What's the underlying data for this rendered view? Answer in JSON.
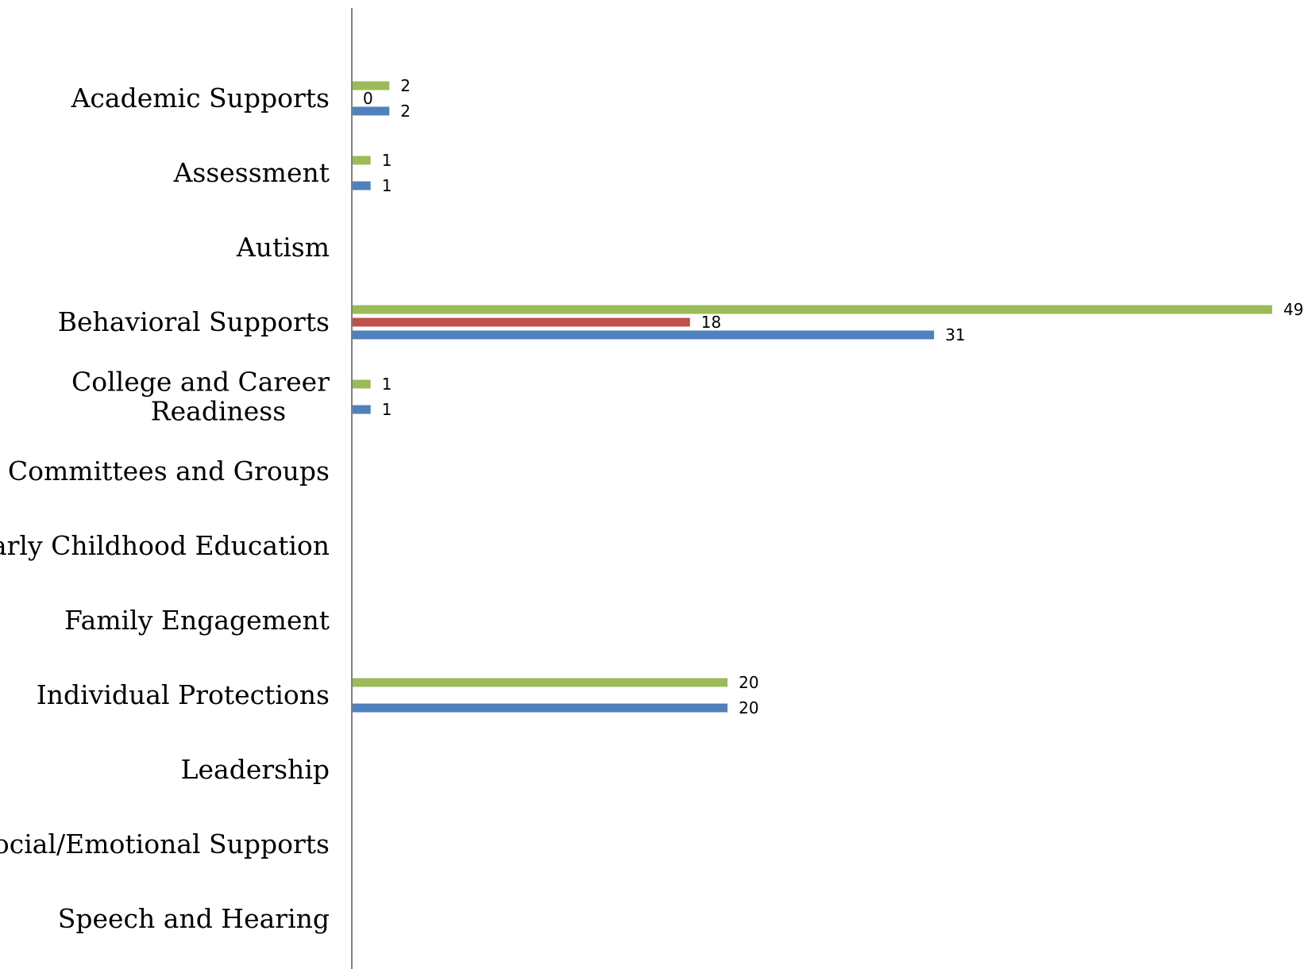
{
  "chart_data": {
    "type": "bar",
    "orientation": "horizontal",
    "categories": [
      "Academic Supports",
      "Assessment",
      "Autism",
      "Behavioral Supports",
      "College and Career Readiness",
      "Committees and Groups",
      "Early Childhood Education",
      "Family Engagement",
      "Individual Protections",
      "Leadership",
      "Social/Emotional Supports",
      "Speech and Hearing"
    ],
    "category_lines": [
      [
        "Academic Supports"
      ],
      [
        "Assessment"
      ],
      [
        "Autism"
      ],
      [
        "Behavioral Supports"
      ],
      [
        "College and Career",
        "Readiness"
      ],
      [
        "Committees and Groups"
      ],
      [
        "Early Childhood Education"
      ],
      [
        "Family Engagement"
      ],
      [
        "Individual Protections"
      ],
      [
        "Leadership"
      ],
      [
        "Social/Emotional Supports"
      ],
      [
        "Speech and Hearing"
      ]
    ],
    "series": [
      {
        "color": "#4F81BD",
        "values": [
          2,
          1,
          null,
          31,
          1,
          null,
          null,
          null,
          20,
          null,
          null,
          null
        ]
      },
      {
        "color": "#C0504D",
        "values": [
          0,
          null,
          null,
          18,
          null,
          null,
          null,
          null,
          null,
          null,
          null,
          null
        ]
      },
      {
        "color": "#9BBB59",
        "values": [
          2,
          1,
          null,
          49,
          1,
          null,
          null,
          null,
          20,
          null,
          null,
          null
        ]
      }
    ],
    "data_labels": true,
    "axis_line_color": "#808080",
    "xlim": [
      0,
      49
    ],
    "legend": "none"
  }
}
